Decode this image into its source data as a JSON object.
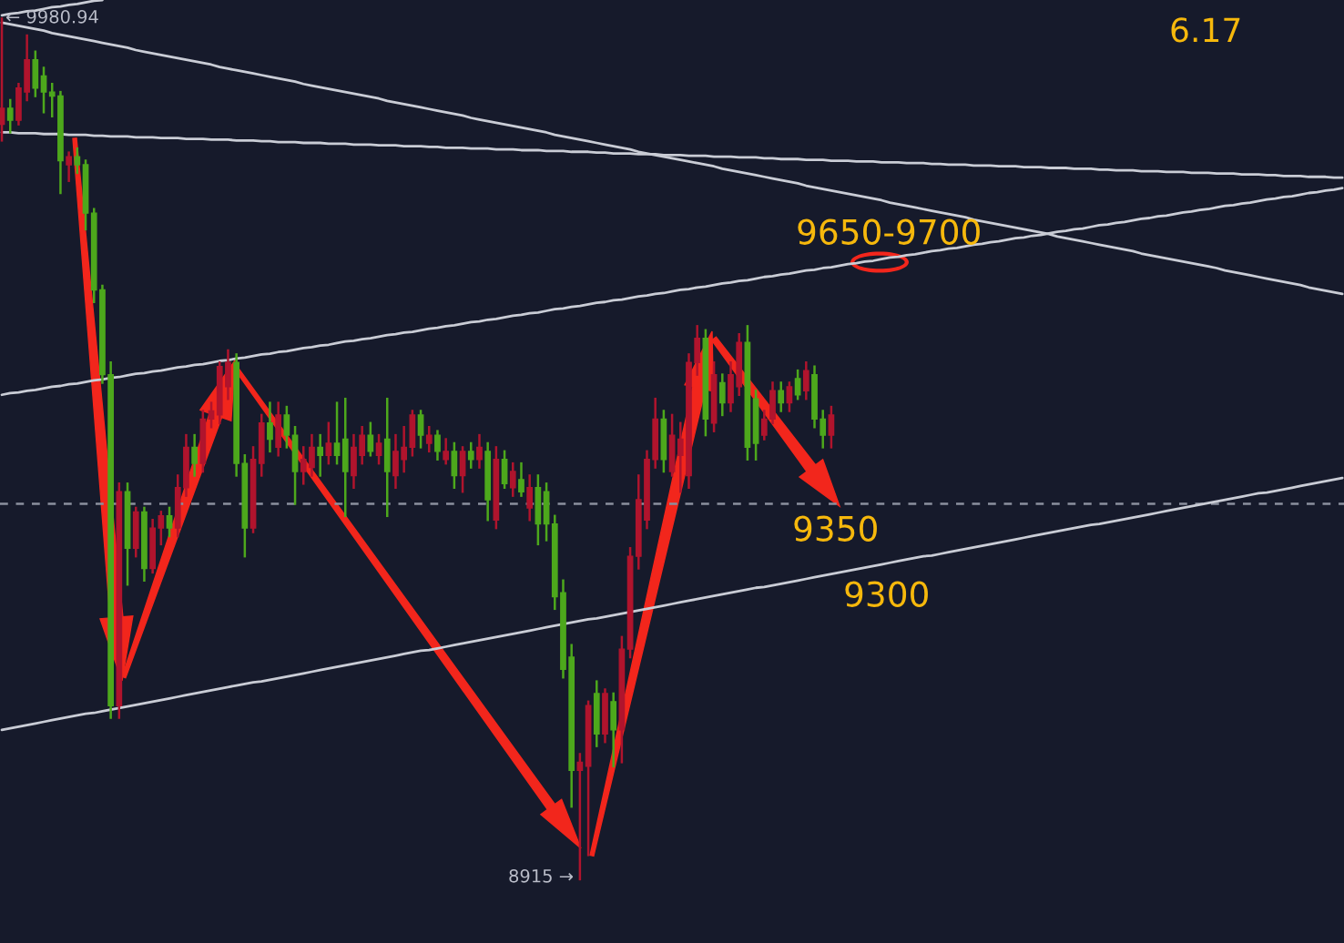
{
  "chart_data": {
    "type": "candlestick",
    "tick_labels": false,
    "categories": [
      null,
      null,
      null,
      null,
      null,
      null,
      null,
      null,
      null,
      null,
      null,
      null,
      null,
      null,
      null,
      null,
      null,
      null,
      null,
      null,
      null,
      null,
      null,
      null,
      null,
      null,
      null,
      null,
      null,
      null,
      null,
      null,
      null,
      null,
      null,
      null,
      null,
      null,
      null,
      null,
      null,
      null,
      null,
      null,
      null,
      null,
      null,
      null,
      null,
      null,
      null,
      null,
      null,
      null,
      null,
      null,
      null,
      null,
      null,
      null,
      null,
      null,
      null,
      null,
      null,
      null,
      null,
      null,
      null,
      null,
      null,
      null,
      null,
      null,
      null,
      null,
      null,
      null,
      null,
      null,
      null,
      null,
      null,
      null,
      null,
      null,
      null,
      null,
      null,
      null,
      null,
      null,
      null,
      null,
      null,
      null,
      null,
      null,
      null,
      null,
      null,
      null,
      null,
      null,
      null,
      null,
      null,
      null,
      null,
      null,
      null,
      null,
      null,
      null,
      null,
      null,
      null,
      null,
      null,
      null,
      null,
      null,
      null,
      null,
      null,
      null,
      null,
      null,
      null,
      null,
      null,
      null,
      null,
      null,
      null,
      null,
      null,
      null,
      null,
      null,
      null,
      null,
      null,
      null,
      null,
      null,
      null,
      null,
      null,
      null,
      null,
      null,
      null,
      null,
      null,
      null,
      null,
      null,
      null,
      null,
      null
    ],
    "ohlc": [
      [
        9850,
        9980.94,
        9830,
        9870
      ],
      [
        9870,
        9880,
        9840,
        9855
      ],
      [
        9855,
        9900,
        9850,
        9895
      ],
      [
        9890,
        9960,
        9880,
        9930
      ],
      [
        9930,
        9940,
        9885,
        9895
      ],
      [
        9910,
        9920,
        9865,
        9890
      ],
      [
        9890,
        9900,
        9860,
        9885
      ],
      [
        9885,
        9890,
        9765,
        9805
      ],
      [
        9800,
        9815,
        9780,
        9810
      ],
      [
        9810,
        9820,
        9790,
        9800
      ],
      [
        9800,
        9805,
        9720,
        9740
      ],
      [
        9740,
        9745,
        9630,
        9645
      ],
      [
        9645,
        9650,
        9530,
        9540
      ],
      [
        9540,
        9555,
        9115,
        9130
      ],
      [
        9130,
        9405,
        9115,
        9395
      ],
      [
        9395,
        9405,
        9280,
        9325
      ],
      [
        9325,
        9375,
        9315,
        9370
      ],
      [
        9370,
        9375,
        9285,
        9300
      ],
      [
        9300,
        9360,
        9295,
        9350
      ],
      [
        9350,
        9370,
        9330,
        9365
      ],
      [
        9365,
        9375,
        9340,
        9350
      ],
      [
        9350,
        9415,
        9340,
        9400
      ],
      [
        9400,
        9465,
        9390,
        9450
      ],
      [
        9450,
        9465,
        9415,
        9430
      ],
      [
        9430,
        9495,
        9420,
        9485
      ],
      [
        9485,
        9505,
        9475,
        9495
      ],
      [
        9490,
        9555,
        9480,
        9550
      ],
      [
        9525,
        9570,
        9510,
        9555
      ],
      [
        9555,
        9565,
        9415,
        9430
      ],
      [
        9430,
        9440,
        9315,
        9350
      ],
      [
        9350,
        9450,
        9345,
        9435
      ],
      [
        9430,
        9490,
        9415,
        9480
      ],
      [
        9480,
        9505,
        9445,
        9460
      ],
      [
        9450,
        9505,
        9440,
        9490
      ],
      [
        9490,
        9500,
        9450,
        9465
      ],
      [
        9465,
        9475,
        9380,
        9420
      ],
      [
        9420,
        9450,
        9405,
        9435
      ],
      [
        9425,
        9465,
        9415,
        9450
      ],
      [
        9450,
        9465,
        9415,
        9440
      ],
      [
        9440,
        9480,
        9430,
        9455
      ],
      [
        9455,
        9505,
        9430,
        9440
      ],
      [
        9460,
        9510,
        9365,
        9420
      ],
      [
        9415,
        9465,
        9400,
        9450
      ],
      [
        9440,
        9475,
        9430,
        9465
      ],
      [
        9465,
        9480,
        9440,
        9445
      ],
      [
        9440,
        9465,
        9430,
        9455
      ],
      [
        9460,
        9510,
        9365,
        9420
      ],
      [
        9415,
        9465,
        9400,
        9445
      ],
      [
        9435,
        9475,
        9420,
        9450
      ],
      [
        9450,
        9495,
        9440,
        9490
      ],
      [
        9490,
        9495,
        9450,
        9465
      ],
      [
        9455,
        9475,
        9445,
        9465
      ],
      [
        9465,
        9470,
        9435,
        9445
      ],
      [
        9435,
        9460,
        9430,
        9445
      ],
      [
        9445,
        9455,
        9400,
        9415
      ],
      [
        9415,
        9450,
        9395,
        9445
      ],
      [
        9445,
        9455,
        9425,
        9435
      ],
      [
        9435,
        9465,
        9425,
        9450
      ],
      [
        9445,
        9455,
        9360,
        9385
      ],
      [
        9360,
        9450,
        9350,
        9435
      ],
      [
        9435,
        9445,
        9400,
        9405
      ],
      [
        9400,
        9430,
        9390,
        9420
      ],
      [
        9410,
        9430,
        9390,
        9395
      ],
      [
        9375,
        9415,
        9360,
        9400
      ],
      [
        9400,
        9415,
        9330,
        9355
      ],
      [
        9395,
        9405,
        9335,
        9355
      ],
      [
        9355,
        9365,
        9250,
        9265
      ],
      [
        9270,
        9285,
        9165,
        9175
      ],
      [
        9190,
        9205,
        9005,
        9050
      ],
      [
        9050,
        9070,
        8915,
        9060
      ],
      [
        9055,
        9135,
        8945,
        9130
      ],
      [
        9145,
        9160,
        9080,
        9095
      ],
      [
        9095,
        9150,
        9085,
        9145
      ],
      [
        9135,
        9145,
        9055,
        9100
      ],
      [
        9100,
        9215,
        9060,
        9200
      ],
      [
        9200,
        9325,
        9190,
        9315
      ],
      [
        9315,
        9415,
        9300,
        9385
      ],
      [
        9360,
        9445,
        9350,
        9435
      ],
      [
        9435,
        9510,
        9425,
        9485
      ],
      [
        9485,
        9495,
        9420,
        9435
      ],
      [
        9420,
        9490,
        9415,
        9465
      ],
      [
        9440,
        9480,
        9395,
        9460
      ],
      [
        9415,
        9565,
        9400,
        9555
      ],
      [
        9555,
        9600,
        9540,
        9585
      ],
      [
        9585,
        9595,
        9465,
        9485
      ],
      [
        9480,
        9555,
        9470,
        9540
      ],
      [
        9530,
        9540,
        9490,
        9505
      ],
      [
        9505,
        9555,
        9495,
        9540
      ],
      [
        9525,
        9590,
        9515,
        9580
      ],
      [
        9580,
        9600,
        9435,
        9450
      ],
      [
        9510,
        9520,
        9435,
        9455
      ],
      [
        9465,
        9495,
        9460,
        9485
      ],
      [
        9485,
        9530,
        9480,
        9520
      ],
      [
        9520,
        9530,
        9495,
        9505
      ],
      [
        9505,
        9530,
        9495,
        9525
      ],
      [
        9535,
        9545,
        9510,
        9515
      ],
      [
        9520,
        9555,
        9510,
        9545
      ],
      [
        9540,
        9550,
        9475,
        9485
      ],
      [
        9485,
        9495,
        9450,
        9465
      ],
      [
        9465,
        9500,
        9450,
        9490
      ],
      null,
      null,
      null,
      null,
      null,
      null,
      null,
      null,
      null,
      null,
      null,
      null,
      null,
      null,
      null,
      null,
      null,
      null,
      null,
      null,
      null,
      null,
      null,
      null,
      null,
      null,
      null,
      null,
      null,
      null,
      null,
      null,
      null,
      null,
      null,
      null,
      null,
      null,
      null,
      null,
      null,
      null,
      null,
      null,
      null,
      null,
      null,
      null,
      null,
      null,
      null,
      null,
      null,
      null,
      null,
      null,
      null,
      null,
      null,
      null,
      null
    ],
    "colors": [
      "#b0142d",
      "#4da81c",
      "#b0142d",
      "#b0142d",
      "#4da81c",
      "#4da81c",
      "#4da81c",
      "#4da81c",
      "#b0142d",
      "#4da81c",
      "#4da81c",
      "#4da81c",
      "#4da81c",
      "#4da81c",
      "#b0142d",
      "#4da81c",
      "#b0142d",
      "#4da81c",
      "#b0142d",
      "#b0142d",
      "#4da81c",
      "#b0142d",
      "#b0142d",
      "#4da81c",
      "#b0142d",
      "#b0142d",
      "#b0142d",
      "#b0142d",
      "#4da81c",
      "#4da81c",
      "#b0142d",
      "#b0142d",
      "#4da81c",
      "#b0142d",
      "#4da81c",
      "#4da81c",
      "#b0142d",
      "#b0142d",
      "#4da81c",
      "#b0142d",
      "#4da81c",
      "#4da81c",
      "#b0142d",
      "#b0142d",
      "#4da81c",
      "#b0142d",
      "#4da81c",
      "#b0142d",
      "#b0142d",
      "#b0142d",
      "#4da81c",
      "#b0142d",
      "#4da81c",
      "#b0142d",
      "#4da81c",
      "#b0142d",
      "#4da81c",
      "#b0142d",
      "#4da81c",
      "#b0142d",
      "#4da81c",
      "#b0142d",
      "#4da81c",
      "#b0142d",
      "#4da81c",
      "#4da81c",
      "#4da81c",
      "#4da81c",
      "#4da81c",
      "#b0142d",
      "#b0142d",
      "#4da81c",
      "#b0142d",
      "#4da81c",
      "#b0142d",
      "#b0142d",
      "#b0142d",
      "#b0142d",
      "#b0142d",
      "#4da81c",
      "#b0142d",
      "#b0142d",
      "#b0142d",
      "#b0142d",
      "#4da81c",
      "#b0142d",
      "#4da81c",
      "#b0142d",
      "#b0142d",
      "#4da81c",
      "#4da81c",
      "#b0142d",
      "#b0142d",
      "#4da81c",
      "#b0142d",
      "#4da81c",
      "#b0142d",
      "#4da81c",
      "#4da81c",
      "#b0142d",
      null,
      null,
      null,
      null,
      null,
      null,
      null,
      null,
      null,
      null,
      null,
      null,
      null,
      null,
      null,
      null,
      null,
      null,
      null,
      null,
      null,
      null,
      null,
      null,
      null,
      null,
      null,
      null,
      null,
      null,
      null,
      null,
      null,
      null,
      null,
      null,
      null,
      null,
      null,
      null,
      null,
      null,
      null,
      null,
      null,
      null,
      null,
      null,
      null,
      null,
      null,
      null,
      null,
      null,
      null,
      null,
      null,
      null,
      null,
      null,
      null
    ],
    "series": [
      {
        "type": "line",
        "color": "#c9ccd5",
        "values": [
          9985,
          9987,
          9988,
          9990,
          9991,
          9993,
          9995,
          9996,
          9998,
          9999,
          10001,
          10003,
          10004,
          null,
          null,
          null,
          null,
          null,
          null,
          null,
          null,
          null,
          null,
          null,
          null,
          null,
          null,
          null,
          null,
          null,
          null,
          null,
          null,
          null,
          null,
          null,
          null,
          null,
          null,
          null,
          null,
          null,
          null,
          null,
          null,
          null,
          null,
          null,
          null,
          null,
          null,
          null,
          null,
          null,
          null,
          null,
          null,
          null,
          null,
          null,
          null,
          null,
          null,
          null,
          null,
          null,
          null,
          null,
          null,
          null,
          null,
          null,
          null,
          null,
          null,
          null,
          null,
          null,
          null,
          null,
          null,
          null,
          null,
          null,
          null,
          null,
          null,
          null,
          null,
          null,
          null,
          null,
          null,
          null,
          null,
          null,
          null,
          null,
          null,
          null,
          null,
          null,
          null,
          null,
          null,
          null,
          null,
          null,
          null,
          null,
          null,
          null,
          null,
          null,
          null,
          null,
          null,
          null,
          null,
          null,
          null,
          null,
          null,
          null,
          null,
          null,
          null,
          null,
          null,
          null,
          null,
          null,
          null,
          null,
          null,
          null,
          null,
          null,
          null,
          null,
          null,
          null,
          null,
          null,
          null,
          null,
          null,
          null,
          null,
          null,
          null,
          null,
          null,
          null,
          null,
          null,
          null,
          null,
          null,
          null,
          null
        ]
      },
      {
        "type": "line",
        "color": "#c9ccd5",
        "values": [
          9976,
          9974,
          9972,
          9970,
          9968,
          9966,
          9963,
          9961,
          9959,
          9957,
          9955,
          9953,
          9951,
          9949,
          9947,
          9945,
          9942,
          9940,
          9938,
          9936,
          9934,
          9932,
          9930,
          9928,
          9926,
          9924,
          9921,
          9919,
          9917,
          9915,
          9913,
          9911,
          9909,
          9907,
          9905,
          9903,
          9900,
          9898,
          9896,
          9894,
          9892,
          9890,
          9888,
          9886,
          9884,
          9882,
          9879,
          9877,
          9875,
          9873,
          9871,
          9869,
          9867,
          9865,
          9863,
          9861,
          9858,
          9856,
          9854,
          9852,
          9850,
          9848,
          9846,
          9844,
          9842,
          9840,
          9837,
          9835,
          9833,
          9831,
          9829,
          9827,
          9825,
          9823,
          9821,
          9819,
          9816,
          9814,
          9812,
          9810,
          9808,
          9806,
          9804,
          9802,
          9800,
          9798,
          9795,
          9793,
          9791,
          9789,
          9787,
          9785,
          9783,
          9781,
          9779,
          9777,
          9774,
          9772,
          9770,
          9768,
          9766,
          9764,
          9762,
          9760,
          9758,
          9756,
          9753,
          9751,
          9749,
          9747,
          9745,
          9743,
          9741,
          9739,
          9737,
          9735,
          9732,
          9730,
          9728,
          9726,
          9724,
          9722,
          9720,
          9718,
          9716,
          9714,
          9711,
          9709,
          9707,
          9705,
          9703,
          9701,
          9699,
          9697,
          9695,
          9693,
          9690,
          9688,
          9686,
          9684,
          9682,
          9680,
          9678,
          9676,
          9674,
          9672,
          9669,
          9667,
          9665,
          9663,
          9661,
          9659,
          9657,
          9655,
          9653,
          9651,
          9648,
          9646,
          9644,
          9642,
          9640
        ]
      },
      {
        "type": "line",
        "color": "#c9ccd5",
        "values": [
          9840,
          9840,
          9839,
          9839,
          9839,
          9838,
          9838,
          9838,
          9837,
          9837,
          9837,
          9836,
          9836,
          9835,
          9835,
          9835,
          9834,
          9834,
          9834,
          9833,
          9833,
          9833,
          9832,
          9832,
          9832,
          9831,
          9831,
          9831,
          9830,
          9830,
          9830,
          9829,
          9829,
          9828,
          9828,
          9828,
          9827,
          9827,
          9827,
          9826,
          9826,
          9826,
          9825,
          9825,
          9825,
          9824,
          9824,
          9824,
          9823,
          9823,
          9823,
          9822,
          9822,
          9821,
          9821,
          9821,
          9820,
          9820,
          9820,
          9819,
          9819,
          9819,
          9818,
          9818,
          9818,
          9817,
          9817,
          9817,
          9816,
          9816,
          9816,
          9815,
          9815,
          9814,
          9814,
          9814,
          9813,
          9813,
          9813,
          9812,
          9812,
          9812,
          9811,
          9811,
          9811,
          9810,
          9810,
          9810,
          9809,
          9809,
          9809,
          9808,
          9808,
          9807,
          9807,
          9807,
          9806,
          9806,
          9806,
          9805,
          9805,
          9805,
          9804,
          9804,
          9804,
          9803,
          9803,
          9803,
          9802,
          9802,
          9802,
          9801,
          9801,
          9800,
          9800,
          9800,
          9799,
          9799,
          9799,
          9798,
          9798,
          9798,
          9797,
          9797,
          9797,
          9796,
          9796,
          9796,
          9795,
          9795,
          9795,
          9794,
          9794,
          9793,
          9793,
          9793,
          9792,
          9792,
          9792,
          9791,
          9791,
          9791,
          9790,
          9790,
          9790,
          9789,
          9789,
          9789,
          9788,
          9788,
          9788,
          9787,
          9787,
          9786,
          9786,
          9786,
          9785,
          9785,
          9785,
          9784,
          9784
        ]
      },
      {
        "type": "line",
        "color": "#c9ccd5",
        "values": [
          9515,
          9517,
          9518,
          9520,
          9521,
          9523,
          9525,
          9526,
          9528,
          9529,
          9531,
          9533,
          9534,
          9536,
          9537,
          9539,
          9541,
          9542,
          9544,
          9545,
          9547,
          9549,
          9550,
          9552,
          9553,
          9555,
          9557,
          9558,
          9560,
          9561,
          9563,
          9565,
          9566,
          9568,
          9569,
          9571,
          9573,
          9574,
          9576,
          9577,
          9579,
          9581,
          9582,
          9584,
          9585,
          9587,
          9589,
          9590,
          9592,
          9593,
          9595,
          9597,
          9598,
          9600,
          9601,
          9603,
          9605,
          9606,
          9608,
          9609,
          9611,
          9613,
          9614,
          9616,
          9617,
          9619,
          9621,
          9622,
          9624,
          9625,
          9627,
          9629,
          9630,
          9632,
          9633,
          9635,
          9637,
          9638,
          9640,
          9641,
          9643,
          9645,
          9646,
          9648,
          9649,
          9651,
          9653,
          9654,
          9656,
          9657,
          9659,
          9661,
          9662,
          9664,
          9665,
          9667,
          9669,
          9670,
          9672,
          9673,
          9675,
          9677,
          9678,
          9680,
          9681,
          9683,
          9685,
          9686,
          9688,
          9689,
          9691,
          9693,
          9694,
          9696,
          9697,
          9699,
          9701,
          9702,
          9704,
          9705,
          9707,
          9709,
          9710,
          9712,
          9713,
          9715,
          9717,
          9718,
          9720,
          9721,
          9723,
          9725,
          9726,
          9728,
          9729,
          9731,
          9733,
          9734,
          9736,
          9737,
          9739,
          9741,
          9742,
          9744,
          9745,
          9747,
          9749,
          9750,
          9752,
          9753,
          9755,
          9757,
          9758,
          9760,
          9761,
          9763,
          9765,
          9766,
          9768,
          9769,
          9771
        ]
      },
      {
        "type": "line",
        "color": "#c9ccd5",
        "values": [
          9100,
          9102,
          9104,
          9106,
          9108,
          9110,
          9112,
          9114,
          9116,
          9118,
          9120,
          9121,
          9123,
          9125,
          9127,
          9129,
          9131,
          9133,
          9135,
          9137,
          9139,
          9141,
          9143,
          9145,
          9147,
          9149,
          9151,
          9153,
          9155,
          9157,
          9159,
          9160,
          9162,
          9164,
          9166,
          9168,
          9170,
          9172,
          9174,
          9176,
          9178,
          9180,
          9182,
          9184,
          9186,
          9188,
          9190,
          9192,
          9194,
          9196,
          9198,
          9199,
          9201,
          9203,
          9205,
          9207,
          9209,
          9211,
          9213,
          9215,
          9217,
          9219,
          9221,
          9223,
          9225,
          9227,
          9229,
          9231,
          9233,
          9235,
          9237,
          9238,
          9240,
          9242,
          9244,
          9246,
          9248,
          9250,
          9252,
          9254,
          9256,
          9258,
          9260,
          9262,
          9264,
          9266,
          9268,
          9270,
          9272,
          9274,
          9276,
          9277,
          9279,
          9281,
          9283,
          9285,
          9287,
          9289,
          9291,
          9293,
          9295,
          9297,
          9299,
          9301,
          9303,
          9305,
          9307,
          9309,
          9311,
          9313,
          9315,
          9316,
          9318,
          9320,
          9322,
          9324,
          9326,
          9328,
          9330,
          9332,
          9334,
          9336,
          9338,
          9340,
          9342,
          9344,
          9346,
          9348,
          9350,
          9352,
          9354,
          9355,
          9357,
          9359,
          9361,
          9363,
          9365,
          9367,
          9369,
          9371,
          9373,
          9375,
          9377,
          9379,
          9381,
          9383,
          9385,
          9387,
          9389,
          9391,
          9393,
          9394,
          9396,
          9398,
          9400,
          9402,
          9404,
          9406,
          9408,
          9410,
          9412
        ]
      }
    ],
    "ref_lines": [
      {
        "axis": "y",
        "value": 9380,
        "color": "#8b909e",
        "line_style": "dashed"
      }
    ],
    "annotations": [
      "6.17",
      "9650-9700",
      "9350",
      "9300",
      "← 9980.94",
      "8915 →"
    ]
  }
}
